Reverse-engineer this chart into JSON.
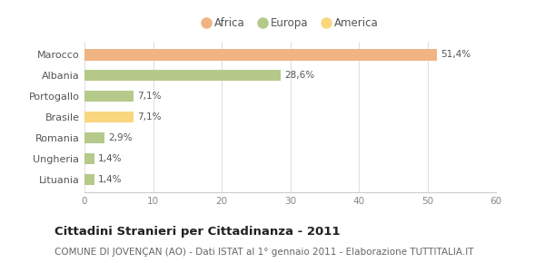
{
  "categories": [
    "Marocco",
    "Albania",
    "Portogallo",
    "Brasile",
    "Romania",
    "Ungheria",
    "Lituania"
  ],
  "values": [
    51.4,
    28.6,
    7.1,
    7.1,
    2.9,
    1.4,
    1.4
  ],
  "labels": [
    "51,4%",
    "28,6%",
    "7,1%",
    "7,1%",
    "2,9%",
    "1,4%",
    "1,4%"
  ],
  "bar_colors": [
    "#f0b482",
    "#b5c98a",
    "#b5c98a",
    "#f9d77e",
    "#b5c98a",
    "#b5c98a",
    "#b5c98a"
  ],
  "xlim": [
    0,
    60
  ],
  "xticks": [
    0,
    10,
    20,
    30,
    40,
    50,
    60
  ],
  "legend_labels": [
    "Africa",
    "Europa",
    "America"
  ],
  "legend_colors": [
    "#f0b482",
    "#b5c98a",
    "#f9d77e"
  ],
  "title": "Cittadini Stranieri per Cittadinanza - 2011",
  "subtitle": "COMUNE DI JOVENÇAN (AO) - Dati ISTAT al 1° gennaio 2011 - Elaborazione TUTTITALIA.IT",
  "background_color": "#ffffff",
  "grid_color": "#e0e0e0",
  "bar_height": 0.55,
  "label_fontsize": 7.5,
  "ytick_fontsize": 8.0,
  "xtick_fontsize": 7.5,
  "legend_fontsize": 8.5,
  "title_fontsize": 9.5,
  "subtitle_fontsize": 7.5
}
